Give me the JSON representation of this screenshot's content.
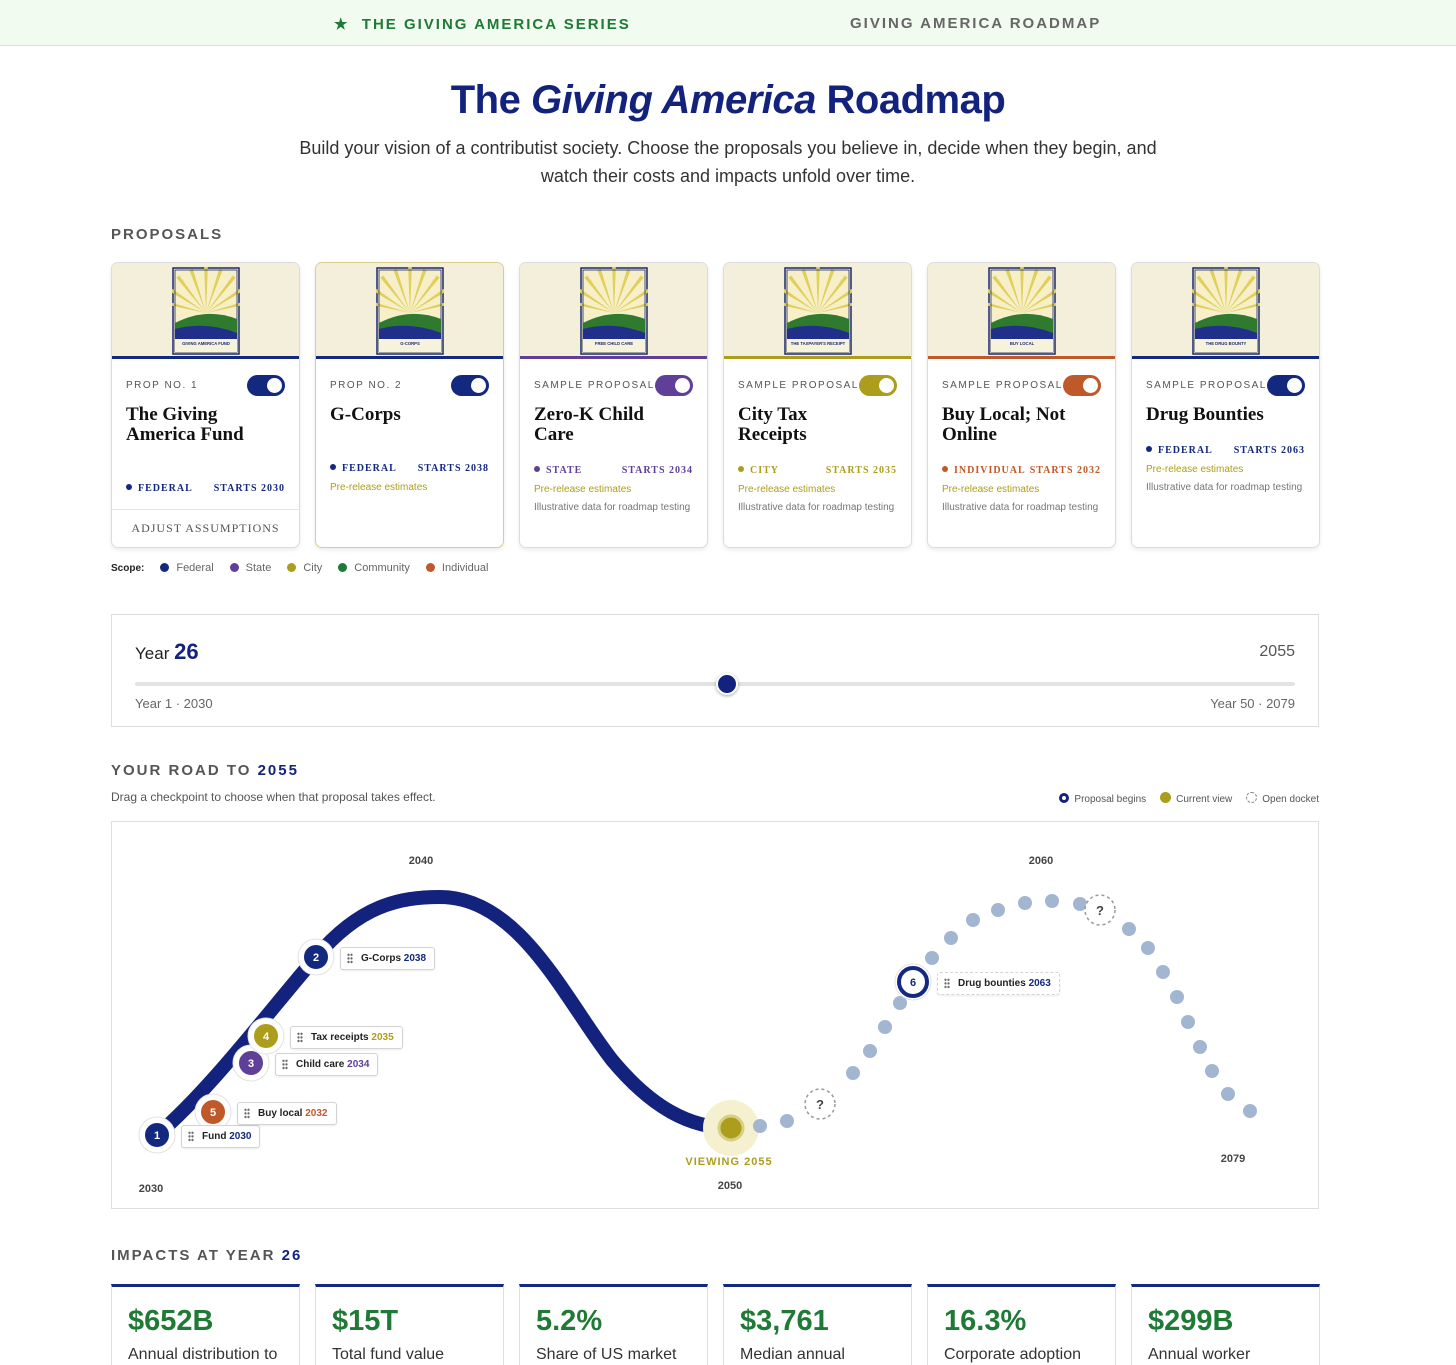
{
  "nav": {
    "series": "THE GIVING AMERICA SERIES",
    "roadmap": "GIVING AMERICA ROADMAP"
  },
  "header": {
    "title_start": "The",
    "title_italic": "Giving America",
    "title_end": "Roadmap",
    "subtitle": "Build your vision of a contributist society. Choose the proposals you believe in, decide when they begin, and watch their costs and impacts unfold over time."
  },
  "proposals": {
    "heading": "PROPOSALS",
    "cards": [
      {
        "poster": "GIVING AMERICA FUND",
        "tag": "PROP NO. 1",
        "name": "The Giving America Fund",
        "scope": "FEDERAL",
        "starts": "STARTS 2030",
        "color": "#13287f",
        "button": "ADJUST ASSUMPTIONS"
      },
      {
        "poster": "G-CORPS",
        "tag": "PROP NO. 2",
        "name": "G-Corps",
        "scope": "FEDERAL",
        "starts": "STARTS 2038",
        "color": "#13287f",
        "estimate": "Pre-release estimates"
      },
      {
        "poster": "FREE CHILD CARE",
        "tag": "SAMPLE PROPOSAL",
        "name": "Zero-K Child Care",
        "scope": "STATE",
        "starts": "STARTS 2034",
        "color": "#5f3f98",
        "estimate": "Pre-release estimates",
        "note": "Illustrative data for roadmap testing"
      },
      {
        "poster": "THE TAXPAYER'S RECEIPT",
        "tag": "SAMPLE PROPOSAL",
        "name": "City Tax Receipts",
        "scope": "CITY",
        "starts": "STARTS 2035",
        "color": "#ad9d1c",
        "estimate": "Pre-release estimates",
        "note": "Illustrative data for roadmap testing"
      },
      {
        "poster": "BUY LOCAL",
        "tag": "SAMPLE PROPOSAL",
        "name": "Buy Local; Not Online",
        "scope": "INDIVIDUAL",
        "starts": "STARTS 2032",
        "color": "#c0592a",
        "estimate": "Pre-release estimates",
        "note": "Illustrative data for roadmap testing"
      },
      {
        "poster": "THE DRUG BOUNTY",
        "tag": "SAMPLE PROPOSAL",
        "name": "Drug Bounties",
        "scope": "FEDERAL",
        "starts": "STARTS 2063",
        "color": "#13287f",
        "estimate": "Pre-release estimates",
        "note": "Illustrative data for roadmap testing"
      }
    ],
    "scope_title": "Scope:",
    "scope_legend": [
      {
        "label": "Federal",
        "color": "#13287f"
      },
      {
        "label": "State",
        "color": "#5f3f98"
      },
      {
        "label": "City",
        "color": "#ad9d1c"
      },
      {
        "label": "Community",
        "color": "#1f7a36"
      },
      {
        "label": "Individual",
        "color": "#c0592a"
      }
    ]
  },
  "slider": {
    "year_word": "Year",
    "year": "26",
    "calendar_year": "2055",
    "start": "Year 1 · 2030",
    "end": "Year 50 · 2079"
  },
  "road": {
    "heading": "YOUR ROAD TO",
    "heading_year": "2055",
    "subtitle": "Drag a checkpoint to choose when that proposal takes effect.",
    "legend": [
      "Proposal begins",
      "Current view",
      "Open docket"
    ],
    "year_labels": [
      "2030",
      "2040",
      "2050",
      "2060",
      "2079"
    ],
    "viewing": "VIEWING 2055",
    "open_markers": [
      "?",
      "?"
    ],
    "checkpoints": [
      {
        "number": "1",
        "label": "Fund",
        "year": "2030",
        "color": "#13287f"
      },
      {
        "number": "5",
        "label": "Buy local",
        "year": "2032",
        "color": "#c0592a"
      },
      {
        "number": "3",
        "label": "Child care",
        "year": "2034",
        "color": "#5f3f98"
      },
      {
        "number": "4",
        "label": "Tax receipts",
        "year": "2035",
        "color": "#ad9d1c"
      },
      {
        "number": "2",
        "label": "G-Corps",
        "year": "2038",
        "color": "#13287f"
      },
      {
        "number": "6",
        "label": "Drug bounties",
        "year": "2063",
        "color": "#13287f"
      }
    ]
  },
  "impacts": {
    "heading": "IMPACTS AT YEAR",
    "heading_year": "26",
    "stats": [
      {
        "value": "$652B",
        "label": "Annual distribution to"
      },
      {
        "value": "$15T",
        "label": "Total fund value"
      },
      {
        "value": "5.2%",
        "label": "Share of US market"
      },
      {
        "value": "$3,761",
        "label": "Median annual worker"
      },
      {
        "value": "16.3%",
        "label": "Corporate adoption"
      },
      {
        "value": "$299B",
        "label": "Annual worker"
      }
    ]
  }
}
